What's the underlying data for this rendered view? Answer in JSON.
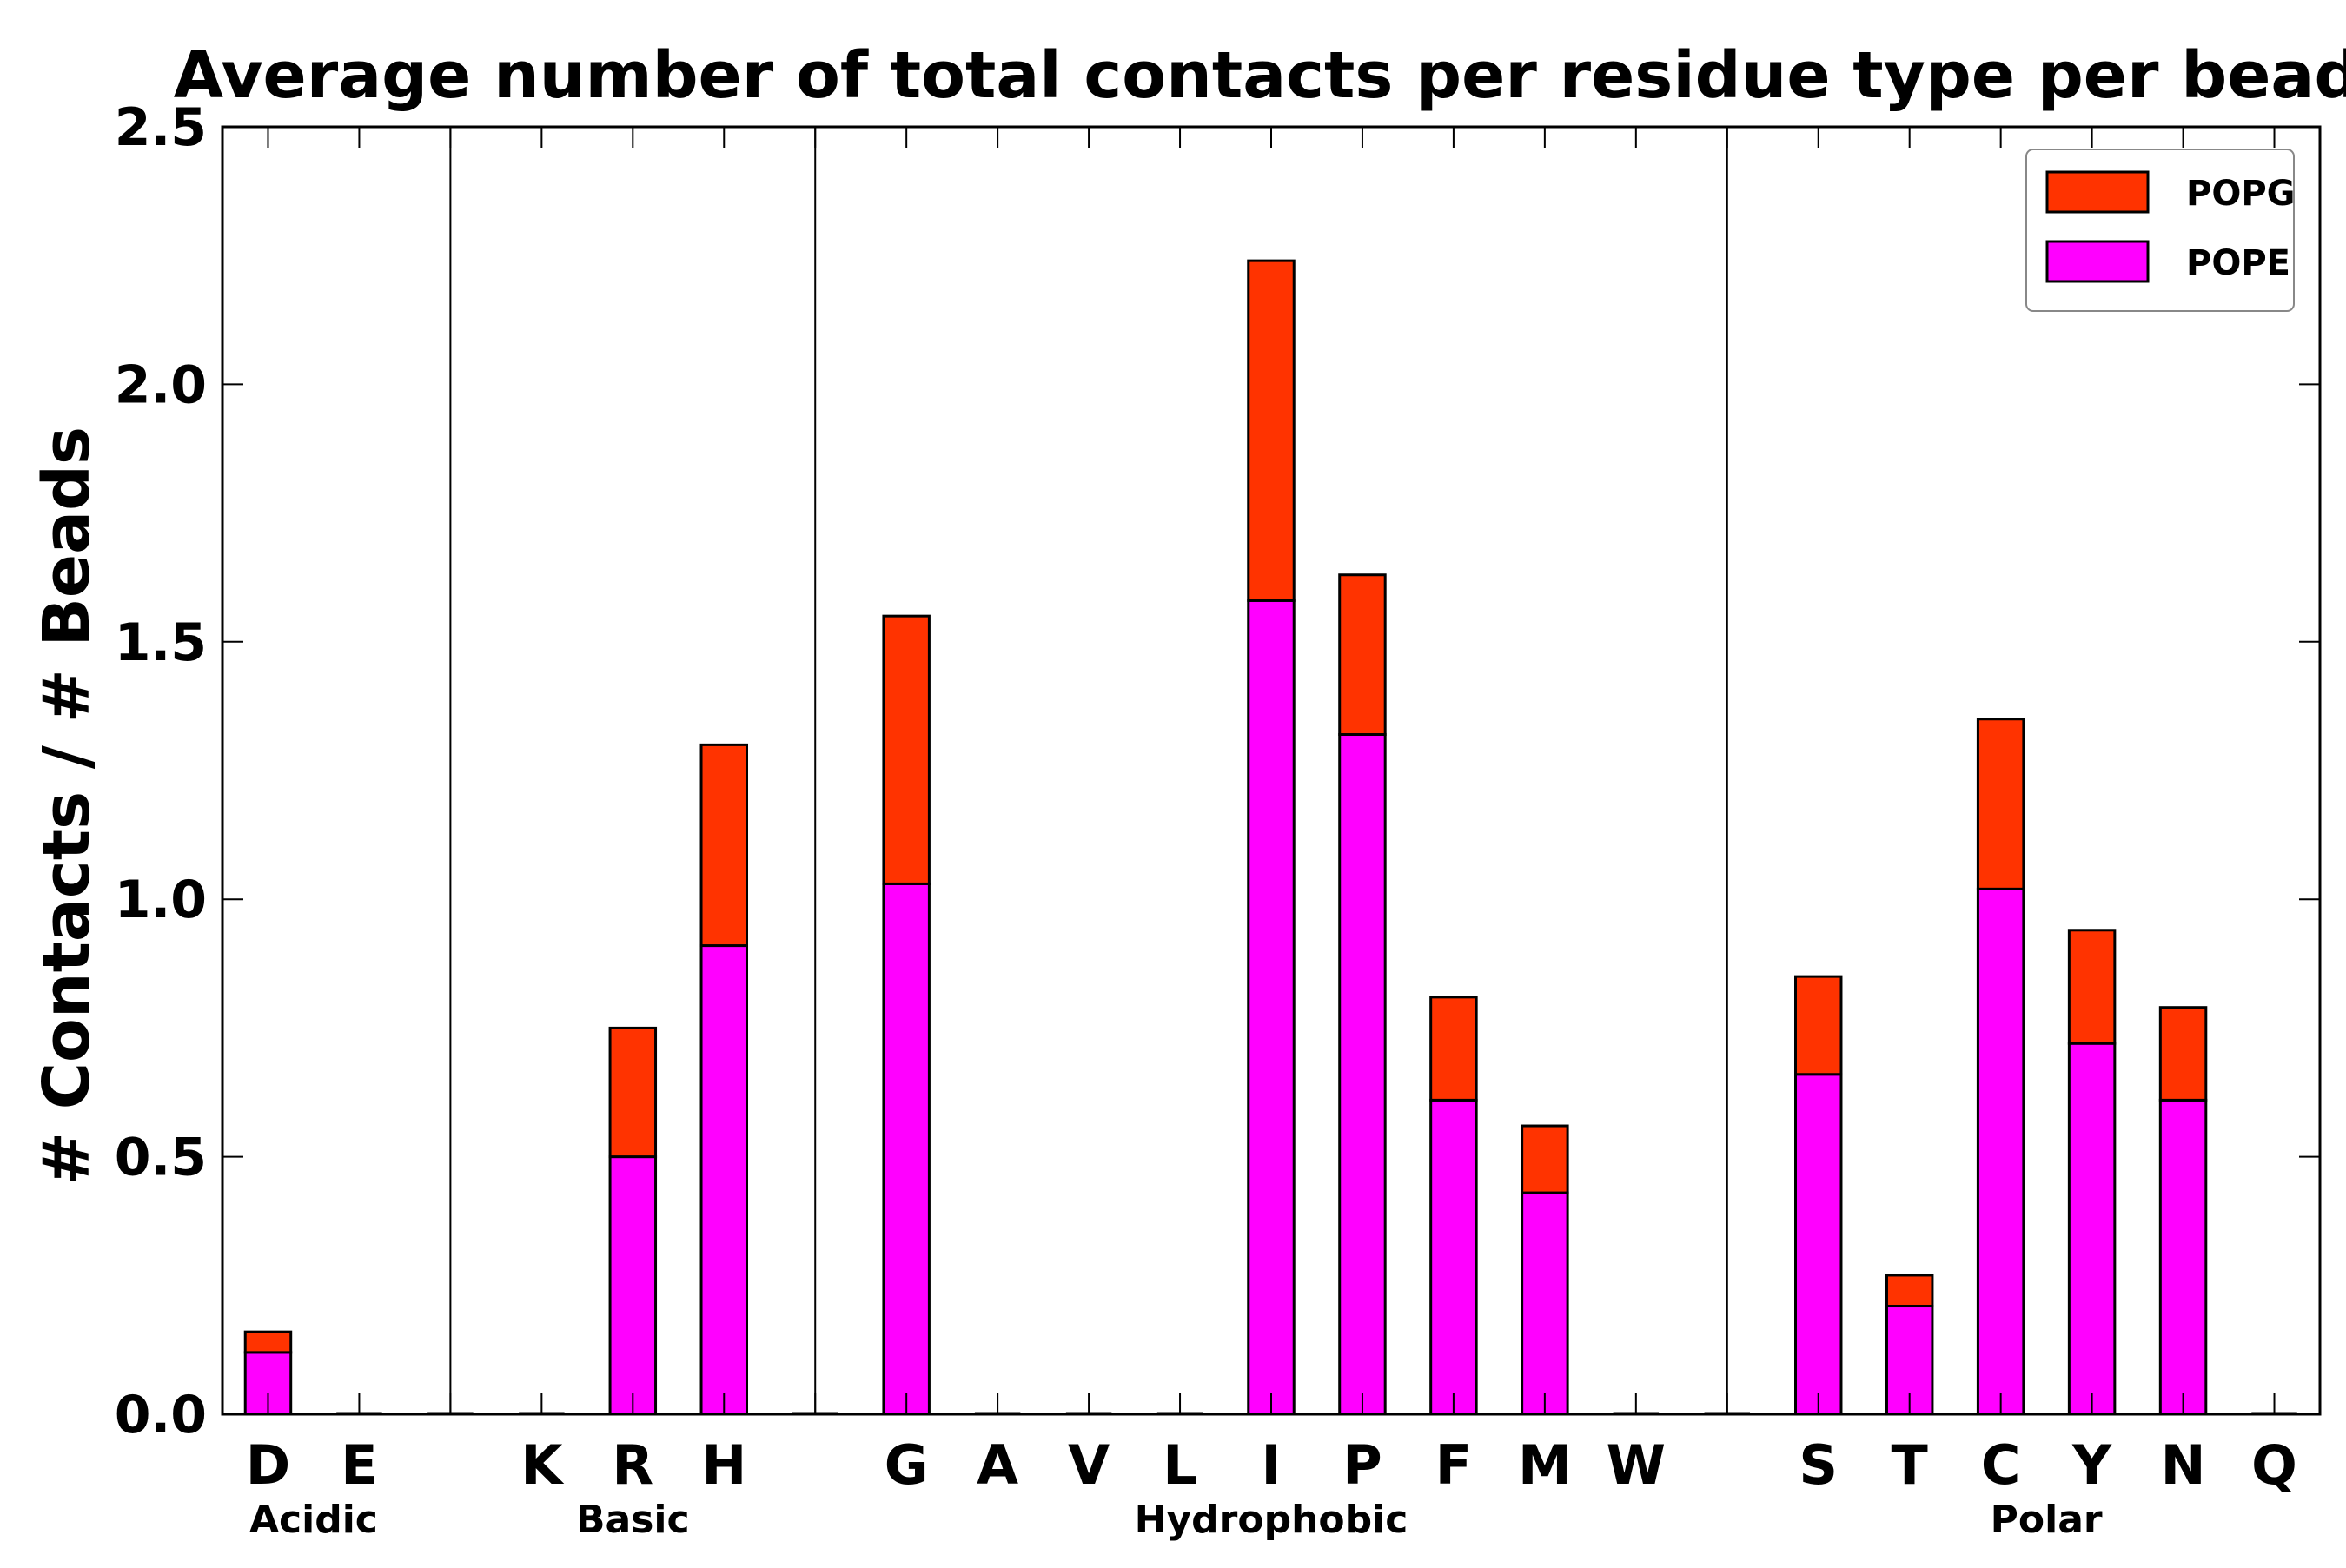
{
  "chart_data": {
    "type": "bar",
    "stacked": true,
    "title": "Average number of total contacts per residue type per bead",
    "xlabel": "",
    "ylabel": "# Contacts / # Beads",
    "ylim": [
      0,
      2.5
    ],
    "yticks": [
      "0.0",
      "0.5",
      "1.0",
      "1.5",
      "2.0",
      "2.5"
    ],
    "legend_position": "top-right",
    "categories": [
      "D",
      "E",
      "",
      "K",
      "R",
      "H",
      "",
      "G",
      "A",
      "V",
      "L",
      "I",
      "P",
      "F",
      "M",
      "W",
      "",
      "S",
      "T",
      "C",
      "Y",
      "N",
      "Q"
    ],
    "series": [
      {
        "name": "POPE",
        "color": "#ff00ff",
        "values": [
          0.12,
          0,
          0,
          0,
          0.5,
          0.91,
          0,
          1.03,
          0,
          0,
          0,
          1.58,
          1.32,
          0.61,
          0.43,
          0,
          0,
          0.66,
          0.21,
          1.02,
          0.72,
          0.61,
          0
        ]
      },
      {
        "name": "POPG",
        "color": "#ff3300",
        "values": [
          0.04,
          0,
          0,
          0,
          0.25,
          0.39,
          0,
          0.52,
          0,
          0,
          0,
          0.66,
          0.31,
          0.2,
          0.13,
          0,
          0,
          0.19,
          0.06,
          0.33,
          0.22,
          0.18,
          0
        ]
      }
    ],
    "groups": [
      {
        "label": "Acidic",
        "start": 0,
        "end": 1
      },
      {
        "label": "Basic",
        "start": 3,
        "end": 5
      },
      {
        "label": "Hydrophobic",
        "start": 7,
        "end": 15
      },
      {
        "label": "Polar",
        "start": 17,
        "end": 22
      }
    ],
    "separators_after_index": [
      2,
      6,
      16
    ]
  }
}
